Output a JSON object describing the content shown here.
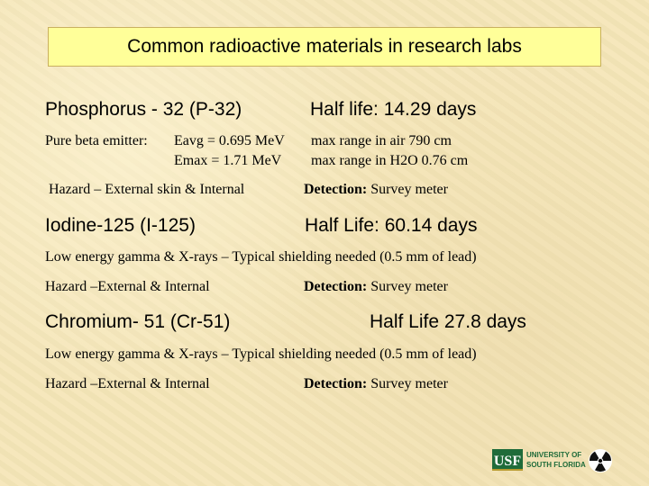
{
  "title": "Common radioactive materials in research labs",
  "p32": {
    "name": "Phosphorus - 32 (P-32)",
    "half_life": "Half life:  14.29 days",
    "emitter_label": "Pure beta emitter:",
    "eavg": "Eavg  = 0.695 MeV",
    "emax": "Emax = 1.71 MeV",
    "range_air": "max range in air 790 cm",
    "range_water": "max range in H2O 0.76 cm",
    "hazard": "Hazard – External skin & Internal",
    "detection_label": "Detection:",
    "detection_value": "Survey meter"
  },
  "i125": {
    "name": "Iodine-125 (I-125)",
    "half_life": "Half Life:  60.14 days",
    "emission": "Low energy gamma & X-rays – Typical shielding needed (0.5 mm of lead)",
    "hazard": "Hazard –External & Internal",
    "detection_label": "Detection:",
    "detection_value": "Survey meter"
  },
  "cr51": {
    "name": "Chromium- 51 (Cr-51)",
    "half_life": "Half Life 27.8 days",
    "emission": "Low energy gamma & X-rays – Typical shielding needed (0.5 mm of lead)",
    "hazard": "Hazard –External & Internal",
    "detection_label": "Detection:",
    "detection_value": "Survey meter"
  },
  "logo": {
    "usf": "USF",
    "line1": "UNIVERSITY OF",
    "line2": "SOUTH FLORIDA",
    "colors": {
      "green": "#1f6b3a",
      "gold": "#b89a2e"
    },
    "icon": "radiation-icon"
  }
}
